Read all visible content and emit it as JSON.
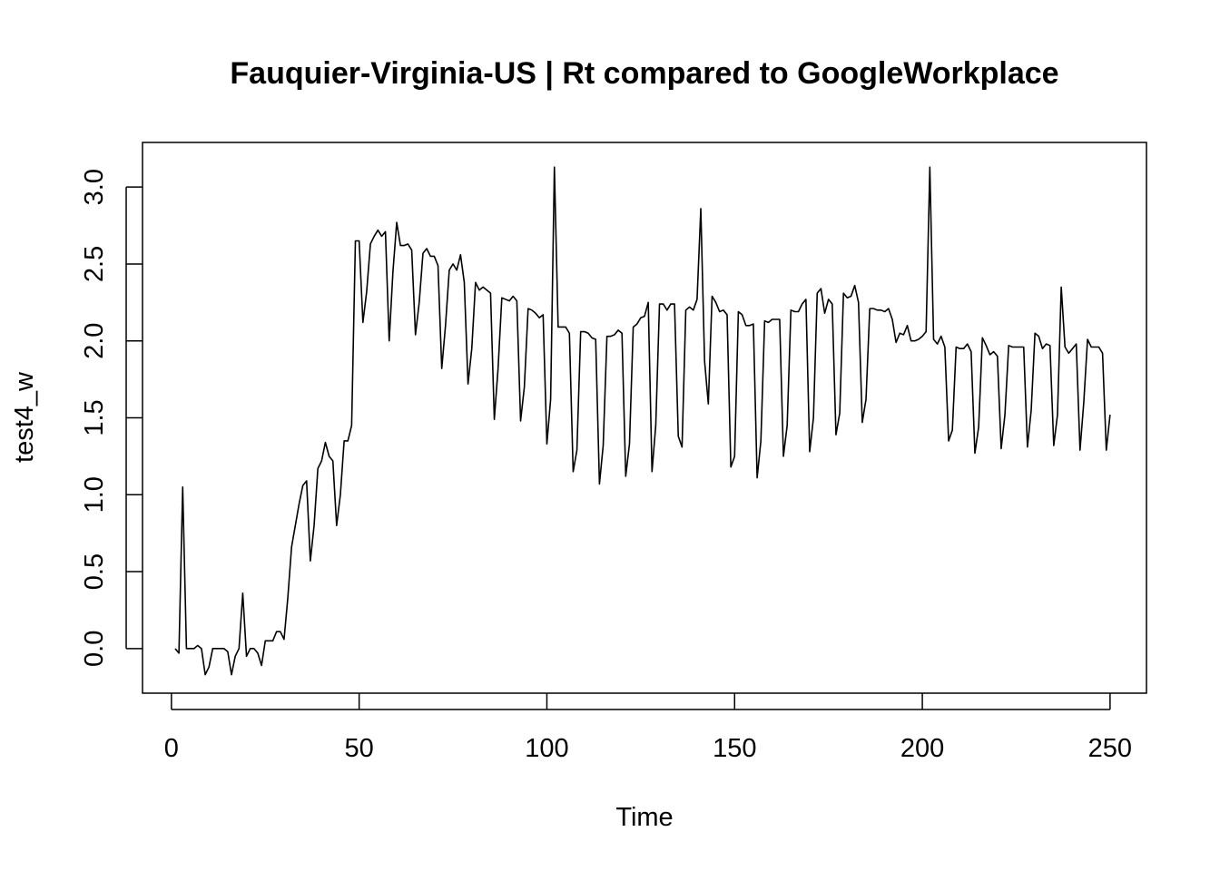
{
  "chart_data": {
    "type": "line",
    "title": "Fauquier-Virginia-US | Rt compared to GoogleWorkplace",
    "xlabel": "Time",
    "ylabel": "test4_w",
    "xlim": [
      -7.7,
      259.7
    ],
    "ylim": [
      -0.29,
      3.29
    ],
    "xticks": [
      0,
      50,
      100,
      150,
      200,
      250
    ],
    "yticks": [
      0.0,
      0.5,
      1.0,
      1.5,
      2.0,
      2.5,
      3.0
    ],
    "xtick_labels": [
      "0",
      "50",
      "100",
      "150",
      "200",
      "250"
    ],
    "ytick_labels": [
      "0.0",
      "0.5",
      "1.0",
      "1.5",
      "2.0",
      "2.5",
      "3.0"
    ],
    "grid": false,
    "legend": false,
    "series": [
      {
        "x_start": 1,
        "values": [
          0.0,
          -0.03,
          1.05,
          0.0,
          0.0,
          0.0,
          0.02,
          0.0,
          -0.17,
          -0.12,
          0.0,
          0.0,
          0.0,
          0.0,
          -0.02,
          -0.17,
          -0.05,
          0.0,
          0.36,
          -0.05,
          0.0,
          0.0,
          -0.03,
          -0.11,
          0.05,
          0.05,
          0.05,
          0.11,
          0.11,
          0.06,
          0.33,
          0.66,
          0.8,
          0.94,
          1.06,
          1.09,
          0.57,
          0.8,
          1.17,
          1.22,
          1.34,
          1.25,
          1.22,
          0.8,
          1.0,
          1.35,
          1.35,
          1.45,
          2.65,
          2.65,
          2.12,
          2.32,
          2.63,
          2.68,
          2.72,
          2.68,
          2.71,
          2.0,
          2.45,
          2.77,
          2.62,
          2.62,
          2.63,
          2.59,
          2.04,
          2.25,
          2.57,
          2.6,
          2.55,
          2.55,
          2.49,
          1.82,
          2.1,
          2.46,
          2.5,
          2.46,
          2.56,
          2.38,
          1.72,
          1.95,
          2.38,
          2.33,
          2.35,
          2.33,
          2.31,
          1.49,
          1.82,
          2.28,
          2.27,
          2.26,
          2.29,
          2.26,
          1.48,
          1.7,
          2.21,
          2.2,
          2.18,
          2.15,
          2.17,
          1.33,
          1.62,
          3.13,
          2.09,
          2.09,
          2.09,
          2.05,
          1.15,
          1.29,
          2.06,
          2.06,
          2.05,
          2.02,
          2.01,
          1.07,
          1.32,
          2.03,
          2.03,
          2.04,
          2.07,
          2.05,
          1.12,
          1.33,
          2.09,
          2.11,
          2.15,
          2.16,
          2.25,
          1.15,
          1.45,
          2.24,
          2.24,
          2.2,
          2.24,
          2.24,
          1.38,
          1.31,
          2.2,
          2.22,
          2.2,
          2.27,
          2.86,
          1.87,
          1.59,
          2.29,
          2.25,
          2.19,
          2.2,
          2.17,
          1.18,
          1.25,
          2.19,
          2.17,
          2.1,
          2.1,
          2.11,
          1.11,
          1.35,
          2.13,
          2.12,
          2.14,
          2.14,
          2.14,
          1.25,
          1.45,
          2.2,
          2.19,
          2.19,
          2.24,
          2.27,
          1.28,
          1.5,
          2.31,
          2.34,
          2.18,
          2.27,
          2.24,
          1.39,
          1.53,
          2.31,
          2.28,
          2.29,
          2.36,
          2.25,
          1.47,
          1.62,
          2.21,
          2.21,
          2.2,
          2.2,
          2.19,
          2.21,
          2.14,
          1.99,
          2.05,
          2.04,
          2.1,
          2.0,
          2.0,
          2.01,
          2.03,
          2.06,
          3.13,
          2.01,
          1.98,
          2.03,
          1.96,
          1.35,
          1.42,
          1.96,
          1.95,
          1.95,
          1.98,
          1.93,
          1.27,
          1.44,
          2.02,
          1.97,
          1.91,
          1.93,
          1.9,
          1.3,
          1.52,
          1.97,
          1.96,
          1.96,
          1.96,
          1.96,
          1.31,
          1.55,
          2.05,
          2.03,
          1.95,
          1.98,
          1.97,
          1.32,
          1.52,
          2.35,
          1.96,
          1.92,
          1.95,
          1.98,
          1.29,
          1.6,
          2.01,
          1.96,
          1.96,
          1.96,
          1.92,
          1.29,
          1.52
        ]
      }
    ]
  }
}
